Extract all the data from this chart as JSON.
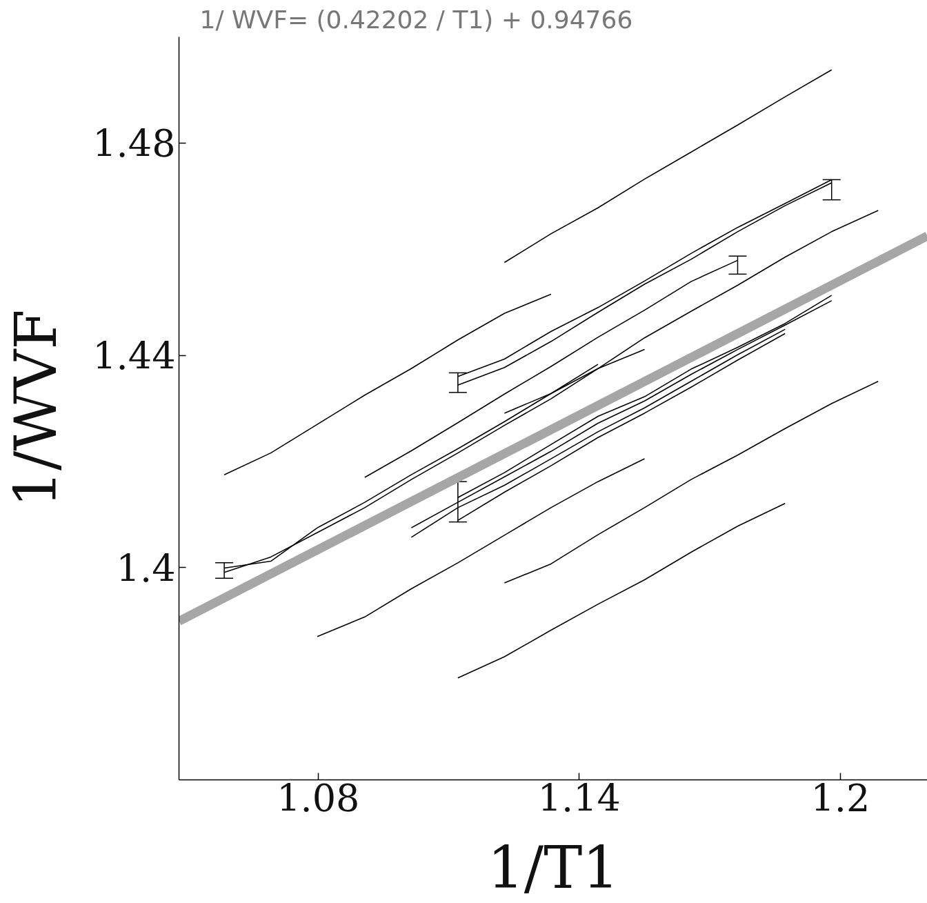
{
  "chart_data": {
    "type": "line",
    "title": "1/ WVF= (0.42202 / T1) +  0.94766",
    "xlabel": "1/T1",
    "ylabel": "1/WVF",
    "xlim": [
      1.048,
      1.22
    ],
    "ylim": [
      1.36,
      1.5
    ],
    "xticks": [
      1.08,
      1.14,
      1.2
    ],
    "yticks": [
      1.4,
      1.44,
      1.48
    ],
    "grid": false,
    "marker": "none",
    "line_style": "solid",
    "series": [
      {
        "color": "#000000",
        "x": [
          1.1228,
          1.1335,
          1.1443,
          1.155,
          1.1657,
          1.1764,
          1.1873,
          1.198
        ],
        "values": [
          1.4575,
          1.4629,
          1.4678,
          1.4732,
          1.4783,
          1.4834,
          1.4887,
          1.4938
        ]
      },
      {
        "color": "#000000",
        "x": [
          1.0584,
          1.0691,
          1.0798,
          1.0907,
          1.1014,
          1.1121,
          1.1228,
          1.1335
        ],
        "values": [
          1.4175,
          1.4216,
          1.427,
          1.4325,
          1.4375,
          1.4429,
          1.4479,
          1.4515
        ]
      },
      {
        "color": "#000000",
        "x": [
          1.1121,
          1.1228,
          1.1335,
          1.1443,
          1.155,
          1.1657,
          1.1764,
          1.1873,
          1.198
        ],
        "values": [
          1.436,
          1.4393,
          1.4445,
          1.449,
          1.454,
          1.4592,
          1.4641,
          1.4686,
          1.4731
        ],
        "errors": [
          [
            1.433,
            1.4367
          ],
          null,
          null,
          null,
          null,
          null,
          null,
          null,
          null
        ]
      },
      {
        "color": "#000000",
        "x": [
          1.1121,
          1.1228,
          1.1335,
          1.1443,
          1.155,
          1.1657,
          1.1764,
          1.1873,
          1.198
        ],
        "values": [
          1.4344,
          1.4377,
          1.4426,
          1.4481,
          1.4534,
          1.4581,
          1.4633,
          1.4682,
          1.4725
        ],
        "errors": [
          null,
          null,
          null,
          null,
          null,
          null,
          null,
          null,
          [
            1.4693,
            1.4731
          ]
        ]
      },
      {
        "color": "#000000",
        "x": [
          1.0907,
          1.1014,
          1.1121,
          1.1228,
          1.1335,
          1.1443,
          1.155,
          1.1657,
          1.1764
        ],
        "values": [
          1.417,
          1.422,
          1.4273,
          1.4327,
          1.4379,
          1.4434,
          1.4485,
          1.4539,
          1.4579
        ],
        "errors": [
          null,
          null,
          null,
          null,
          null,
          null,
          null,
          null,
          [
            1.4553,
            1.4587
          ]
        ]
      },
      {
        "color": "#000000",
        "x": [
          1.1228,
          1.1335,
          1.1443,
          1.155
        ],
        "values": [
          1.4291,
          1.4328,
          1.4375,
          1.4411
        ]
      },
      {
        "color": "#000000",
        "x": [
          1.0584,
          1.0691,
          1.0798,
          1.0907,
          1.1014,
          1.1121,
          1.1228,
          1.1335,
          1.1443,
          1.155,
          1.1657,
          1.1764,
          1.1873,
          1.198,
          1.2087
        ],
        "values": [
          1.3991,
          1.402,
          1.4066,
          1.4113,
          1.4166,
          1.4216,
          1.4268,
          1.4318,
          1.4375,
          1.4433,
          1.4483,
          1.4532,
          1.4585,
          1.4633,
          1.4673
        ],
        "errors": [
          [
            1.398,
            1.4009
          ],
          null,
          null,
          null,
          null,
          null,
          null,
          null,
          null,
          null,
          null,
          null,
          null,
          null,
          null
        ]
      },
      {
        "color": "#000000",
        "x": [
          1.0584,
          1.0691,
          1.0798,
          1.0907,
          1.1014,
          1.1121,
          1.1228,
          1.1335,
          1.1443
        ],
        "values": [
          1.3999,
          1.4012,
          1.4075,
          1.4123,
          1.4175,
          1.4224,
          1.4275,
          1.4328,
          1.4383
        ]
      },
      {
        "color": "#000000",
        "x": [
          1.1121,
          1.1228,
          1.1335,
          1.1443,
          1.155,
          1.1657,
          1.1764,
          1.1873,
          1.198
        ],
        "values": [
          1.4132,
          1.4179,
          1.4232,
          1.4285,
          1.4322,
          1.4374,
          1.4415,
          1.446,
          1.4513
        ],
        "errors": [
          [
            1.4086,
            1.4162
          ],
          null,
          null,
          null,
          null,
          null,
          null,
          null,
          null
        ]
      },
      {
        "color": "#000000",
        "x": [
          1.1014,
          1.1121,
          1.1228,
          1.1335,
          1.1443,
          1.155,
          1.1657,
          1.1764,
          1.1873,
          1.198
        ],
        "values": [
          1.4075,
          1.4123,
          1.4171,
          1.4219,
          1.4272,
          1.4314,
          1.4364,
          1.4411,
          1.4457,
          1.4503
        ]
      },
      {
        "color": "#000000",
        "x": [
          1.1014,
          1.1121,
          1.1228,
          1.1335,
          1.1443,
          1.155,
          1.1657,
          1.1764,
          1.1873
        ],
        "values": [
          1.4057,
          1.4113,
          1.4155,
          1.4205,
          1.4256,
          1.4301,
          1.4351,
          1.4401,
          1.4449
        ]
      },
      {
        "color": "#000000",
        "x": [
          1.1121,
          1.1228,
          1.1335,
          1.1443,
          1.155,
          1.1657,
          1.1764,
          1.1873
        ],
        "values": [
          1.4089,
          1.4142,
          1.4192,
          1.4245,
          1.4291,
          1.434,
          1.4391,
          1.4441
        ]
      },
      {
        "color": "#000000",
        "x": [
          1.0798,
          1.0907,
          1.1014,
          1.1121,
          1.1228,
          1.1335,
          1.1443,
          1.155
        ],
        "values": [
          1.387,
          1.3907,
          1.396,
          1.4009,
          1.4061,
          1.4113,
          1.4162,
          1.4205
        ]
      },
      {
        "color": "#000000",
        "x": [
          1.1228,
          1.1335,
          1.1443,
          1.155,
          1.1657,
          1.1764,
          1.1873,
          1.198,
          1.2087
        ],
        "values": [
          1.3971,
          1.4007,
          1.4062,
          1.4113,
          1.4166,
          1.4212,
          1.4262,
          1.4309,
          1.4351
        ]
      },
      {
        "color": "#000000",
        "x": [
          1.1121,
          1.1228,
          1.1335,
          1.1443,
          1.155,
          1.1657,
          1.1764,
          1.1873
        ],
        "values": [
          1.3792,
          1.3832,
          1.3882,
          1.3931,
          1.3977,
          1.4029,
          1.4078,
          1.4121
        ]
      },
      {
        "color": "#a6a6a6",
        "x": [
          1.048,
          1.22
        ],
        "values": [
          1.3899,
          1.4625
        ]
      }
    ]
  }
}
